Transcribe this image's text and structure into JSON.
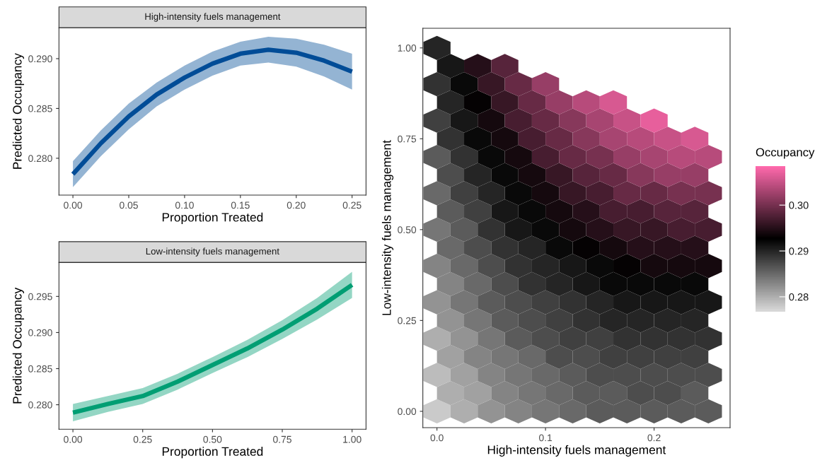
{
  "chart_data": [
    {
      "type": "line",
      "title": "High-intensity fuels management",
      "xlabel": "Proportion Treated",
      "ylabel": "Predicted Occupancy",
      "x": [
        0,
        0.025,
        0.05,
        0.075,
        0.1,
        0.125,
        0.15,
        0.175,
        0.2,
        0.225,
        0.25
      ],
      "series": [
        {
          "color": "#004c97",
          "values": [
            0.2784,
            0.2815,
            0.2842,
            0.2864,
            0.2881,
            0.2895,
            0.2905,
            0.2909,
            0.2906,
            0.2898,
            0.2887
          ],
          "lower": [
            0.2771,
            0.2802,
            0.2829,
            0.2852,
            0.2869,
            0.2883,
            0.2893,
            0.2896,
            0.2892,
            0.2882,
            0.2869
          ],
          "upper": [
            0.2797,
            0.2828,
            0.2855,
            0.2876,
            0.2893,
            0.2907,
            0.2917,
            0.2922,
            0.292,
            0.2914,
            0.2905
          ]
        }
      ],
      "xlim": [
        -0.0125,
        0.2625
      ],
      "ylim": [
        0.2763,
        0.2931
      ],
      "xticks": [
        {
          "value": 0,
          "label": "0.00"
        },
        {
          "value": 0.05,
          "label": "0.05"
        },
        {
          "value": 0.1,
          "label": "0.10"
        },
        {
          "value": 0.15,
          "label": "0.15"
        },
        {
          "value": 0.2,
          "label": "0.20"
        },
        {
          "value": 0.25,
          "label": "0.25"
        }
      ],
      "yticks": [
        {
          "value": 0.28,
          "label": "0.280"
        },
        {
          "value": 0.285,
          "label": "0.285"
        },
        {
          "value": 0.29,
          "label": "0.290"
        }
      ]
    },
    {
      "type": "line",
      "title": "Low-intensity fuels management",
      "xlabel": "Proportion Treated",
      "ylabel": "Predicted Occupancy",
      "x": [
        0,
        0.125,
        0.25,
        0.375,
        0.5,
        0.625,
        0.75,
        0.875,
        1
      ],
      "series": [
        {
          "color": "#009e73",
          "values": [
            0.2789,
            0.2801,
            0.2812,
            0.2832,
            0.2855,
            0.2878,
            0.2904,
            0.2933,
            0.2966
          ],
          "lower": [
            0.2777,
            0.279,
            0.2801,
            0.2821,
            0.2844,
            0.2866,
            0.2891,
            0.2918,
            0.2948
          ],
          "upper": [
            0.2801,
            0.2812,
            0.2823,
            0.2843,
            0.2866,
            0.289,
            0.2917,
            0.2948,
            0.2984
          ]
        }
      ],
      "xlim": [
        -0.05,
        1.05
      ],
      "ylim": [
        0.2766,
        0.2997
      ],
      "xticks": [
        {
          "value": 0,
          "label": "0.00"
        },
        {
          "value": 0.25,
          "label": "0.25"
        },
        {
          "value": 0.5,
          "label": "0.50"
        },
        {
          "value": 0.75,
          "label": "0.75"
        },
        {
          "value": 1,
          "label": "1.00"
        }
      ],
      "yticks": [
        {
          "value": 0.28,
          "label": "0.280"
        },
        {
          "value": 0.285,
          "label": "0.285"
        },
        {
          "value": 0.29,
          "label": "0.290"
        },
        {
          "value": 0.295,
          "label": "0.295"
        }
      ]
    },
    {
      "type": "scatter",
      "xlabel": "High-intensity fuels management",
      "ylabel": "Low-intensity fuels management",
      "clabel": "Occupancy",
      "x": [
        0,
        0.025,
        0.05,
        0.075,
        0.1,
        0.125,
        0.15,
        0.175,
        0.2,
        0.225,
        0.25,
        0.0125,
        0.0375,
        0.0625,
        0.0875,
        0.1125,
        0.1375,
        0.1625,
        0.1875,
        0.2125,
        0.2375,
        0,
        0.025,
        0.05,
        0.075,
        0.1,
        0.125,
        0.15,
        0.175,
        0.2,
        0.225,
        0.25,
        0.0125,
        0.0375,
        0.0625,
        0.0875,
        0.1125,
        0.1375,
        0.1625,
        0.1875,
        0.2125,
        0.2375,
        0,
        0.025,
        0.05,
        0.075,
        0.1,
        0.125,
        0.15,
        0.175,
        0.2,
        0.225,
        0.25,
        0.0125,
        0.0375,
        0.0625,
        0.0875,
        0.1125,
        0.1375,
        0.1625,
        0.1875,
        0.2125,
        0.2375,
        0,
        0.025,
        0.05,
        0.075,
        0.1,
        0.125,
        0.15,
        0.175,
        0.2,
        0.225,
        0.25,
        0.0125,
        0.0375,
        0.0625,
        0.0875,
        0.1125,
        0.1375,
        0.1625,
        0.1875,
        0.2125,
        0.2375,
        0,
        0.025,
        0.05,
        0.075,
        0.1,
        0.125,
        0.15,
        0.175,
        0.2,
        0.225,
        0.25,
        0.0125,
        0.0375,
        0.0625,
        0.0875,
        0.1125,
        0.1375,
        0.1625,
        0.1875,
        0.2125,
        0.2375,
        0,
        0.025,
        0.05,
        0.075,
        0.1,
        0.125,
        0.15,
        0.175,
        0.2,
        0.225,
        0.25,
        0.0125,
        0.0375,
        0.0625,
        0.0875,
        0.1125,
        0.1375,
        0.1625,
        0.1875,
        0.2125,
        0.2375,
        0,
        0.025,
        0.05,
        0.075,
        0.1,
        0.125,
        0.15,
        0.175,
        0.2,
        0.225,
        0.25,
        0.0125,
        0.0375,
        0.0625,
        0.0875,
        0.1125,
        0.1375,
        0.1625,
        0.1875,
        0.2125,
        0.2375,
        0,
        0.025,
        0.05,
        0.075,
        0.1,
        0.125,
        0.15,
        0.175,
        0.2,
        0.225,
        0.25,
        0.0125,
        0.0375,
        0.0625,
        0.0875,
        0.1125,
        0.1375,
        0.1625,
        0.1875,
        0.2125,
        0.2375,
        0,
        0.025,
        0.05,
        0.075,
        0.1,
        0.125,
        0.15,
        0.175,
        0.2,
        0.0125,
        0.0375,
        0.0625,
        0.0875,
        0.1125,
        0.1375,
        0.1625,
        0,
        0.025,
        0.05,
        0.075,
        0.1,
        0.0125,
        0.0375,
        0.0625,
        0
      ],
      "values": [
        0,
        0,
        0,
        0,
        0,
        0,
        0,
        0,
        0,
        0,
        0,
        0.05,
        0.05,
        0.05,
        0.05,
        0.05,
        0.05,
        0.05,
        0.05,
        0.05,
        0.05,
        0.1,
        0.1,
        0.1,
        0.1,
        0.1,
        0.1,
        0.1,
        0.1,
        0.1,
        0.1,
        0.1,
        0.15,
        0.15,
        0.15,
        0.15,
        0.15,
        0.15,
        0.15,
        0.15,
        0.15,
        0.15,
        0.2,
        0.2,
        0.2,
        0.2,
        0.2,
        0.2,
        0.2,
        0.2,
        0.2,
        0.2,
        0.2,
        0.25,
        0.25,
        0.25,
        0.25,
        0.25,
        0.25,
        0.25,
        0.25,
        0.25,
        0.25,
        0.3,
        0.3,
        0.3,
        0.3,
        0.3,
        0.3,
        0.3,
        0.3,
        0.3,
        0.3,
        0.3,
        0.35,
        0.35,
        0.35,
        0.35,
        0.35,
        0.35,
        0.35,
        0.35,
        0.35,
        0.35,
        0.4,
        0.4,
        0.4,
        0.4,
        0.4,
        0.4,
        0.4,
        0.4,
        0.4,
        0.4,
        0.4,
        0.45,
        0.45,
        0.45,
        0.45,
        0.45,
        0.45,
        0.45,
        0.45,
        0.45,
        0.45,
        0.5,
        0.5,
        0.5,
        0.5,
        0.5,
        0.5,
        0.5,
        0.5,
        0.5,
        0.5,
        0.5,
        0.55,
        0.55,
        0.55,
        0.55,
        0.55,
        0.55,
        0.55,
        0.55,
        0.55,
        0.55,
        0.6,
        0.6,
        0.6,
        0.6,
        0.6,
        0.6,
        0.6,
        0.6,
        0.6,
        0.6,
        0.6,
        0.65,
        0.65,
        0.65,
        0.65,
        0.65,
        0.65,
        0.65,
        0.65,
        0.65,
        0.65,
        0.7,
        0.7,
        0.7,
        0.7,
        0.7,
        0.7,
        0.7,
        0.7,
        0.7,
        0.7,
        0.7,
        0.75,
        0.75,
        0.75,
        0.75,
        0.75,
        0.75,
        0.75,
        0.75,
        0.75,
        0.75,
        0.8,
        0.8,
        0.8,
        0.8,
        0.8,
        0.8,
        0.8,
        0.8,
        0.8,
        0.85,
        0.85,
        0.85,
        0.85,
        0.85,
        0.85,
        0.85,
        0.9,
        0.9,
        0.9,
        0.9,
        0.9,
        0.95,
        0.95,
        0.95,
        1.0
      ],
      "cvalues": [
        0.278,
        0.28,
        0.282,
        0.283,
        0.284,
        0.285,
        0.286,
        0.286,
        0.286,
        0.286,
        0.286,
        0.28,
        0.281,
        0.283,
        0.284,
        0.285,
        0.286,
        0.286,
        0.287,
        0.287,
        0.286,
        0.279,
        0.281,
        0.283,
        0.284,
        0.285,
        0.286,
        0.287,
        0.287,
        0.287,
        0.287,
        0.287,
        0.281,
        0.283,
        0.284,
        0.285,
        0.287,
        0.287,
        0.288,
        0.288,
        0.288,
        0.288,
        0.28,
        0.282,
        0.284,
        0.286,
        0.287,
        0.288,
        0.288,
        0.289,
        0.289,
        0.289,
        0.289,
        0.282,
        0.284,
        0.286,
        0.287,
        0.288,
        0.289,
        0.29,
        0.29,
        0.29,
        0.29,
        0.282,
        0.284,
        0.286,
        0.287,
        0.288,
        0.289,
        0.29,
        0.291,
        0.291,
        0.291,
        0.291,
        0.283,
        0.285,
        0.287,
        0.289,
        0.29,
        0.291,
        0.292,
        0.292,
        0.292,
        0.292,
        0.283,
        0.285,
        0.287,
        0.289,
        0.29,
        0.291,
        0.292,
        0.293,
        0.294,
        0.294,
        0.294,
        0.285,
        0.287,
        0.289,
        0.29,
        0.292,
        0.293,
        0.294,
        0.295,
        0.295,
        0.295,
        0.284,
        0.286,
        0.289,
        0.291,
        0.292,
        0.294,
        0.295,
        0.296,
        0.296,
        0.297,
        0.297,
        0.286,
        0.288,
        0.291,
        0.292,
        0.294,
        0.295,
        0.297,
        0.297,
        0.298,
        0.298,
        0.285,
        0.288,
        0.29,
        0.292,
        0.294,
        0.296,
        0.297,
        0.299,
        0.299,
        0.3,
        0.3,
        0.287,
        0.29,
        0.292,
        0.294,
        0.296,
        0.298,
        0.299,
        0.301,
        0.302,
        0.302,
        0.286,
        0.289,
        0.292,
        0.294,
        0.297,
        0.299,
        0.3,
        0.302,
        0.303,
        0.304,
        0.304,
        0.289,
        0.292,
        0.294,
        0.297,
        0.299,
        0.301,
        0.303,
        0.304,
        0.305,
        0.306,
        0.288,
        0.291,
        0.294,
        0.297,
        0.299,
        0.301,
        0.303,
        0.305,
        0.307,
        0.29,
        0.293,
        0.296,
        0.299,
        0.302,
        0.304,
        0.306,
        0.289,
        0.292,
        0.296,
        0.299,
        0.302,
        0.291,
        0.295,
        0.298,
        0.29
      ],
      "xlim": [
        -0.013,
        0.27
      ],
      "ylim": [
        -0.045,
        1.054
      ],
      "xticks": [
        {
          "value": 0,
          "label": "0.0"
        },
        {
          "value": 0.1,
          "label": "0.1"
        },
        {
          "value": 0.2,
          "label": "0.2"
        }
      ],
      "yticks": [
        {
          "value": 0,
          "label": "0.00"
        },
        {
          "value": 0.25,
          "label": "0.25"
        },
        {
          "value": 0.5,
          "label": "0.50"
        },
        {
          "value": 0.75,
          "label": "0.75"
        },
        {
          "value": 1,
          "label": "1.00"
        }
      ],
      "clim": [
        0.2768,
        0.3085
      ],
      "cticks": [
        {
          "value": 0.28,
          "label": "0.28"
        },
        {
          "value": 0.29,
          "label": "0.29"
        },
        {
          "value": 0.3,
          "label": "0.30"
        }
      ]
    }
  ]
}
